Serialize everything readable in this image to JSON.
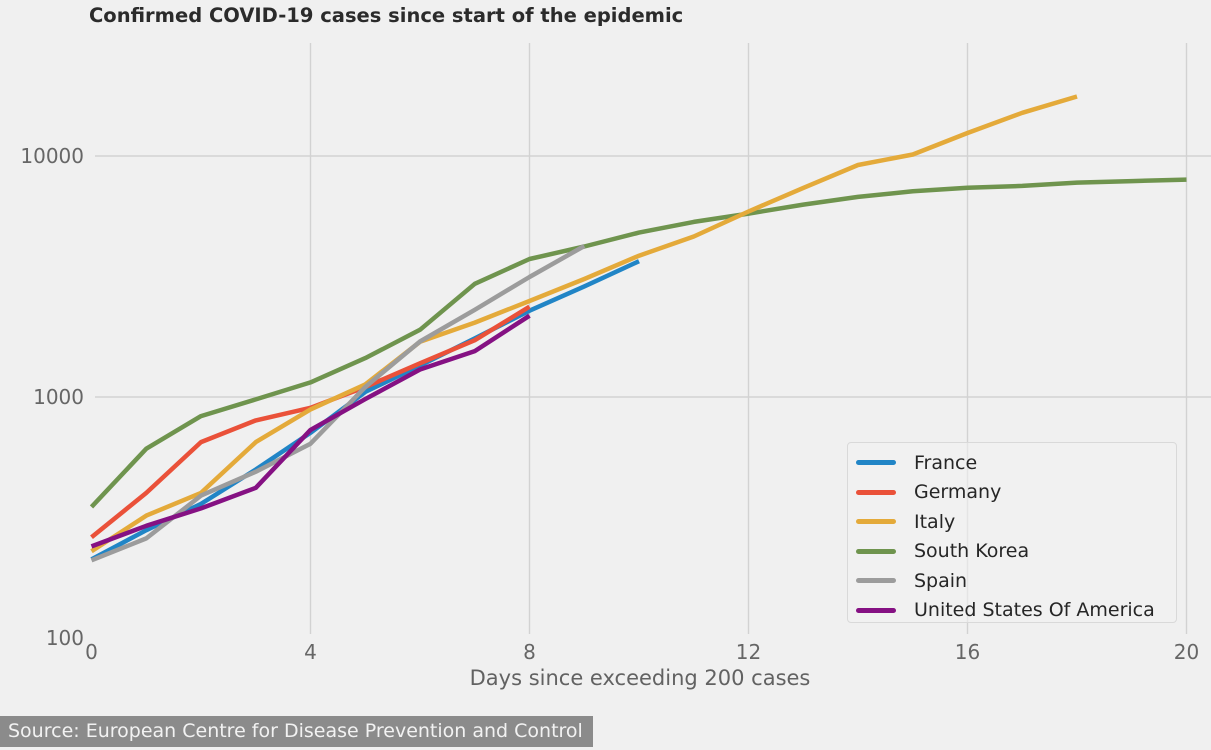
{
  "title": "Confirmed COVID-19 cases since start of the epidemic",
  "source_note": "Source: European Centre for Disease Prevention and Control",
  "colors": {
    "background": "#f0f0f0",
    "grid": "#d2d2d2",
    "tick_text": "#666666",
    "title_text": "#2b2b2b",
    "legend_text": "#262626",
    "source_bg": "#8b8b8b",
    "source_text": "#f2f2f2"
  },
  "chart_data": {
    "type": "line",
    "title": "Confirmed COVID-19 cases since start of the epidemic",
    "xlabel": "Days since exceeding 200 cases",
    "ylabel": "",
    "y_scale": "log",
    "grid": true,
    "legend_position": "lower right",
    "x_ticks": [
      0,
      4,
      8,
      12,
      16,
      20
    ],
    "y_ticks": [
      100,
      1000,
      10000
    ],
    "xlim": [
      0,
      20.4
    ],
    "ylim": [
      87,
      29000
    ],
    "x_start": 0,
    "x_step": 1,
    "series": [
      {
        "name": "France",
        "color": "#2185c6",
        "values": [
          212,
          280,
          360,
          500,
          710,
          1050,
          1350,
          1750,
          2281,
          2876,
          3661
        ]
      },
      {
        "name": "Germany",
        "color": "#ea5139",
        "values": [
          262,
          400,
          650,
          800,
          902,
          1100,
          1380,
          1720,
          2369
        ]
      },
      {
        "name": "Italy",
        "color": "#e4aa3a",
        "values": [
          229,
          322,
          400,
          650,
          888,
          1128,
          1694,
          2036,
          2502,
          3089,
          3858,
          4636,
          5883,
          7375,
          9172,
          10149,
          12462,
          15113,
          17660
        ]
      },
      {
        "name": "South Korea",
        "color": "#6f944e",
        "values": [
          350,
          610,
          833,
          977,
          1150,
          1450,
          1900,
          2950,
          3736,
          4212,
          4812,
          5328,
          5766,
          6284,
          6767,
          7134,
          7382,
          7513,
          7755,
          7869,
          7979
        ]
      },
      {
        "name": "Spain",
        "color": "#9c9c9c",
        "values": [
          210,
          259,
          390,
          490,
          640,
          1100,
          1700,
          2300,
          3146,
          4231
        ]
      },
      {
        "name": "United States Of America",
        "color": "#851183",
        "values": [
          240,
          292,
          345,
          420,
          730,
          980,
          1300,
          1550,
          2174
        ]
      }
    ]
  }
}
